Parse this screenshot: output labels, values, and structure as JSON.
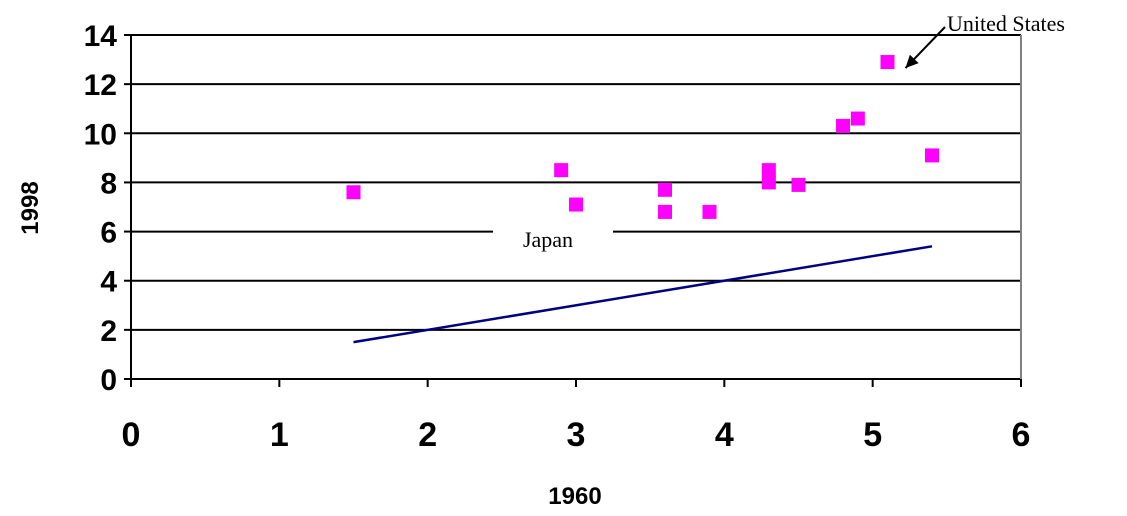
{
  "chart_data": {
    "type": "scatter",
    "xlabel": "1960",
    "ylabel": "1998",
    "xlim": [
      0,
      6
    ],
    "ylim": [
      0,
      14
    ],
    "x_ticks": [
      "0",
      "1",
      "2",
      "3",
      "4",
      "5",
      "6"
    ],
    "y_ticks": [
      "0",
      "2",
      "4",
      "6",
      "8",
      "10",
      "12",
      "14"
    ],
    "grid": "horizontal",
    "marker_color": "#ff00ff",
    "line_color": "#000080",
    "points": [
      {
        "x": 1.5,
        "y": 7.6
      },
      {
        "x": 2.9,
        "y": 8.5
      },
      {
        "x": 3.0,
        "y": 7.1
      },
      {
        "x": 3.6,
        "y": 7.7
      },
      {
        "x": 3.6,
        "y": 6.8
      },
      {
        "x": 3.9,
        "y": 6.8
      },
      {
        "x": 4.3,
        "y": 8.5
      },
      {
        "x": 4.3,
        "y": 8.0
      },
      {
        "x": 4.5,
        "y": 7.9
      },
      {
        "x": 4.8,
        "y": 10.3
      },
      {
        "x": 4.9,
        "y": 10.6
      },
      {
        "x": 5.1,
        "y": 12.9
      },
      {
        "x": 5.4,
        "y": 9.1
      }
    ],
    "trend_line": [
      {
        "x": 1.5,
        "y": 1.5
      },
      {
        "x": 5.4,
        "y": 5.4
      }
    ],
    "annotations": [
      {
        "text": "United States",
        "target": {
          "x": 5.1,
          "y": 12.9
        }
      },
      {
        "text": "Japan"
      }
    ]
  }
}
